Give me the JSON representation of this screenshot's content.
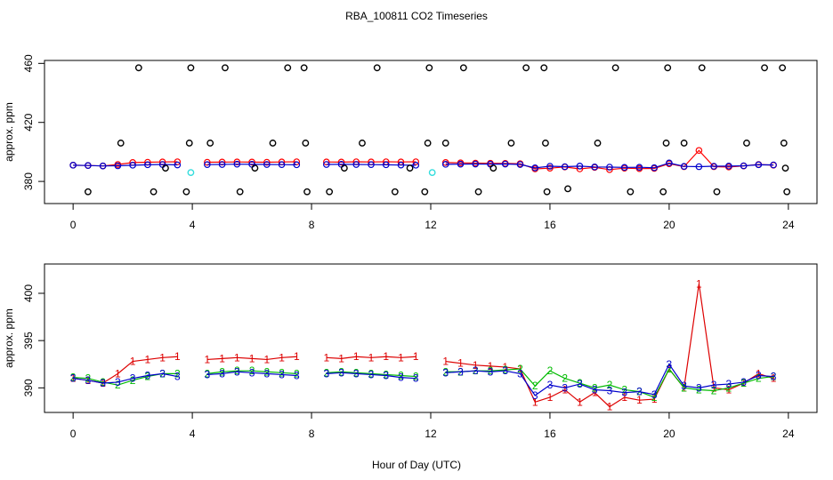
{
  "chart_data": [
    {
      "type": "line",
      "title": "RBA_100811  CO2 Timeseries",
      "y_label": "approx. ppm",
      "xlim": [
        -0.96,
        24.96
      ],
      "xticks": [
        0,
        4,
        8,
        12,
        16,
        20,
        24
      ],
      "ylim": [
        365,
        462
      ],
      "yticks": [
        380,
        420,
        460
      ],
      "x": [
        0,
        0.5,
        1,
        1.5,
        2,
        2.5,
        3,
        3.5,
        4,
        4.5,
        5,
        5.5,
        6,
        6.5,
        7,
        7.5,
        8,
        8.5,
        9,
        9.5,
        10,
        10.5,
        11,
        11.5,
        12,
        12.5,
        13,
        13.5,
        14,
        14.5,
        15,
        15.5,
        16,
        16.5,
        17,
        17.5,
        18,
        18.5,
        19,
        19.5,
        20,
        20.5,
        21,
        21.5,
        22,
        22.5,
        23,
        23.5
      ],
      "series": [
        {
          "color": "#ff0000",
          "values": [
            391,
            390.8,
            390.5,
            391.5,
            392.8,
            393.0,
            393.2,
            393.3,
            null,
            393.0,
            393.1,
            393.2,
            393.1,
            393.0,
            393.2,
            393.3,
            null,
            393.2,
            393.1,
            393.3,
            393.2,
            393.3,
            393.2,
            393.3,
            null,
            392.8,
            392.6,
            392.4,
            392.3,
            392.2,
            392.0,
            388.5,
            389.0,
            389.8,
            388.5,
            389.5,
            388.0,
            389.0,
            388.7,
            388.8,
            392.0,
            390.0,
            401.0,
            390.0,
            389.8,
            390.5,
            391.5,
            391.0
          ]
        },
        {
          "color": "#0000cc",
          "values": [
            391.0,
            390.8,
            390.5,
            390.6,
            391.0,
            391.3,
            391.5,
            391.2,
            null,
            391.4,
            391.5,
            391.7,
            391.6,
            391.5,
            391.4,
            391.3,
            null,
            391.5,
            391.6,
            391.5,
            391.4,
            391.3,
            391.1,
            391.0,
            null,
            391.6,
            391.7,
            391.8,
            391.7,
            391.8,
            391.5,
            389.2,
            390.3,
            390.0,
            390.4,
            389.8,
            389.7,
            389.5,
            389.6,
            389.3,
            392.5,
            390.2,
            390.0,
            390.3,
            390.4,
            390.6,
            391.3,
            391.2
          ]
        }
      ],
      "points": [
        {
          "color": "#000000",
          "x": [
            0.5,
            1.6,
            2.2,
            2.7,
            3.1,
            3.8,
            3.9,
            3.95,
            4.6,
            5.1,
            5.6,
            6.1,
            6.7,
            7.2,
            7.75,
            7.8,
            7.85,
            8.6,
            9.1,
            9.7,
            10.2,
            10.8,
            11.3,
            11.8,
            11.9,
            11.95,
            12.5,
            13.1,
            13.6,
            14.1,
            14.7,
            15.2,
            15.8,
            15.85,
            15.9,
            16.6,
            17.6,
            18.2,
            18.7,
            19.8,
            19.9,
            19.95,
            20.5,
            21.1,
            21.6,
            22.6,
            23.2,
            23.8,
            23.85,
            23.9,
            23.95
          ],
          "values": [
            373,
            406,
            457,
            373,
            389,
            373,
            406,
            457,
            406,
            457,
            373,
            389,
            406,
            457,
            457,
            406,
            373,
            373,
            389,
            406,
            457,
            373,
            389,
            373,
            406,
            457,
            406,
            457,
            373,
            389,
            406,
            457,
            457,
            406,
            373,
            375,
            406,
            457,
            373,
            373,
            406,
            457,
            406,
            457,
            373,
            406,
            457,
            457,
            406,
            389,
            373
          ]
        },
        {
          "color": "#33dddd",
          "x": [
            3.95,
            12.05
          ],
          "values": [
            386,
            386
          ]
        }
      ]
    },
    {
      "type": "line",
      "x_label": "Hour of Day (UTC)",
      "y_label": "approx. ppm",
      "xlim": [
        -0.96,
        24.96
      ],
      "xticks": [
        0,
        4,
        8,
        12,
        16,
        20,
        24
      ],
      "ylim": [
        387.4,
        403.1
      ],
      "yticks": [
        390,
        395,
        400
      ],
      "x": [
        0,
        0.5,
        1,
        1.5,
        2,
        2.5,
        3,
        3.5,
        4,
        4.5,
        5,
        5.5,
        6,
        6.5,
        7,
        7.5,
        8,
        8.5,
        9,
        9.5,
        10,
        10.5,
        11,
        11.5,
        12,
        12.5,
        13,
        13.5,
        14,
        14.5,
        15,
        15.5,
        16,
        16.5,
        17,
        17.5,
        18,
        18.5,
        19,
        19.5,
        20,
        20.5,
        21,
        21.5,
        22,
        22.5,
        23,
        23.5
      ],
      "series": [
        {
          "marker": "1",
          "color": "#dd0000",
          "values": [
            391,
            390.8,
            390.5,
            391.5,
            392.8,
            393.0,
            393.2,
            393.3,
            null,
            393.0,
            393.1,
            393.2,
            393.1,
            393.0,
            393.2,
            393.3,
            null,
            393.2,
            393.1,
            393.3,
            393.2,
            393.3,
            393.2,
            393.3,
            null,
            392.8,
            392.6,
            392.4,
            392.3,
            392.2,
            392.0,
            388.5,
            389.0,
            389.8,
            388.5,
            389.5,
            388.0,
            389.0,
            388.7,
            388.8,
            392.0,
            390.0,
            401.0,
            390.0,
            389.8,
            390.5,
            391.5,
            391.0
          ]
        },
        {
          "marker": "2",
          "color": "#00bb00",
          "values": [
            391.1,
            391.0,
            390.6,
            390.3,
            390.8,
            391.2,
            391.5,
            391.5,
            null,
            391.5,
            391.7,
            391.8,
            391.8,
            391.7,
            391.6,
            391.5,
            null,
            391.6,
            391.7,
            391.6,
            391.5,
            391.4,
            391.3,
            391.2,
            null,
            391.7,
            391.7,
            391.8,
            391.8,
            391.9,
            392.0,
            390.2,
            391.8,
            391.0,
            390.5,
            390.0,
            390.3,
            389.8,
            389.6,
            389.0,
            392.0,
            390.0,
            389.8,
            389.7,
            390.0,
            390.5,
            391.0,
            391.2
          ]
        },
        {
          "marker": "3",
          "color": "#0000cc",
          "values": [
            391.0,
            390.8,
            390.5,
            390.6,
            391.0,
            391.3,
            391.5,
            391.2,
            null,
            391.4,
            391.5,
            391.7,
            391.6,
            391.5,
            391.4,
            391.3,
            null,
            391.5,
            391.6,
            391.5,
            391.4,
            391.3,
            391.1,
            391.0,
            null,
            391.6,
            391.7,
            391.8,
            391.7,
            391.8,
            391.5,
            389.2,
            390.3,
            390.0,
            390.4,
            389.8,
            389.7,
            389.5,
            389.6,
            389.3,
            392.5,
            390.2,
            390.0,
            390.3,
            390.4,
            390.6,
            391.3,
            391.2
          ]
        }
      ]
    }
  ]
}
